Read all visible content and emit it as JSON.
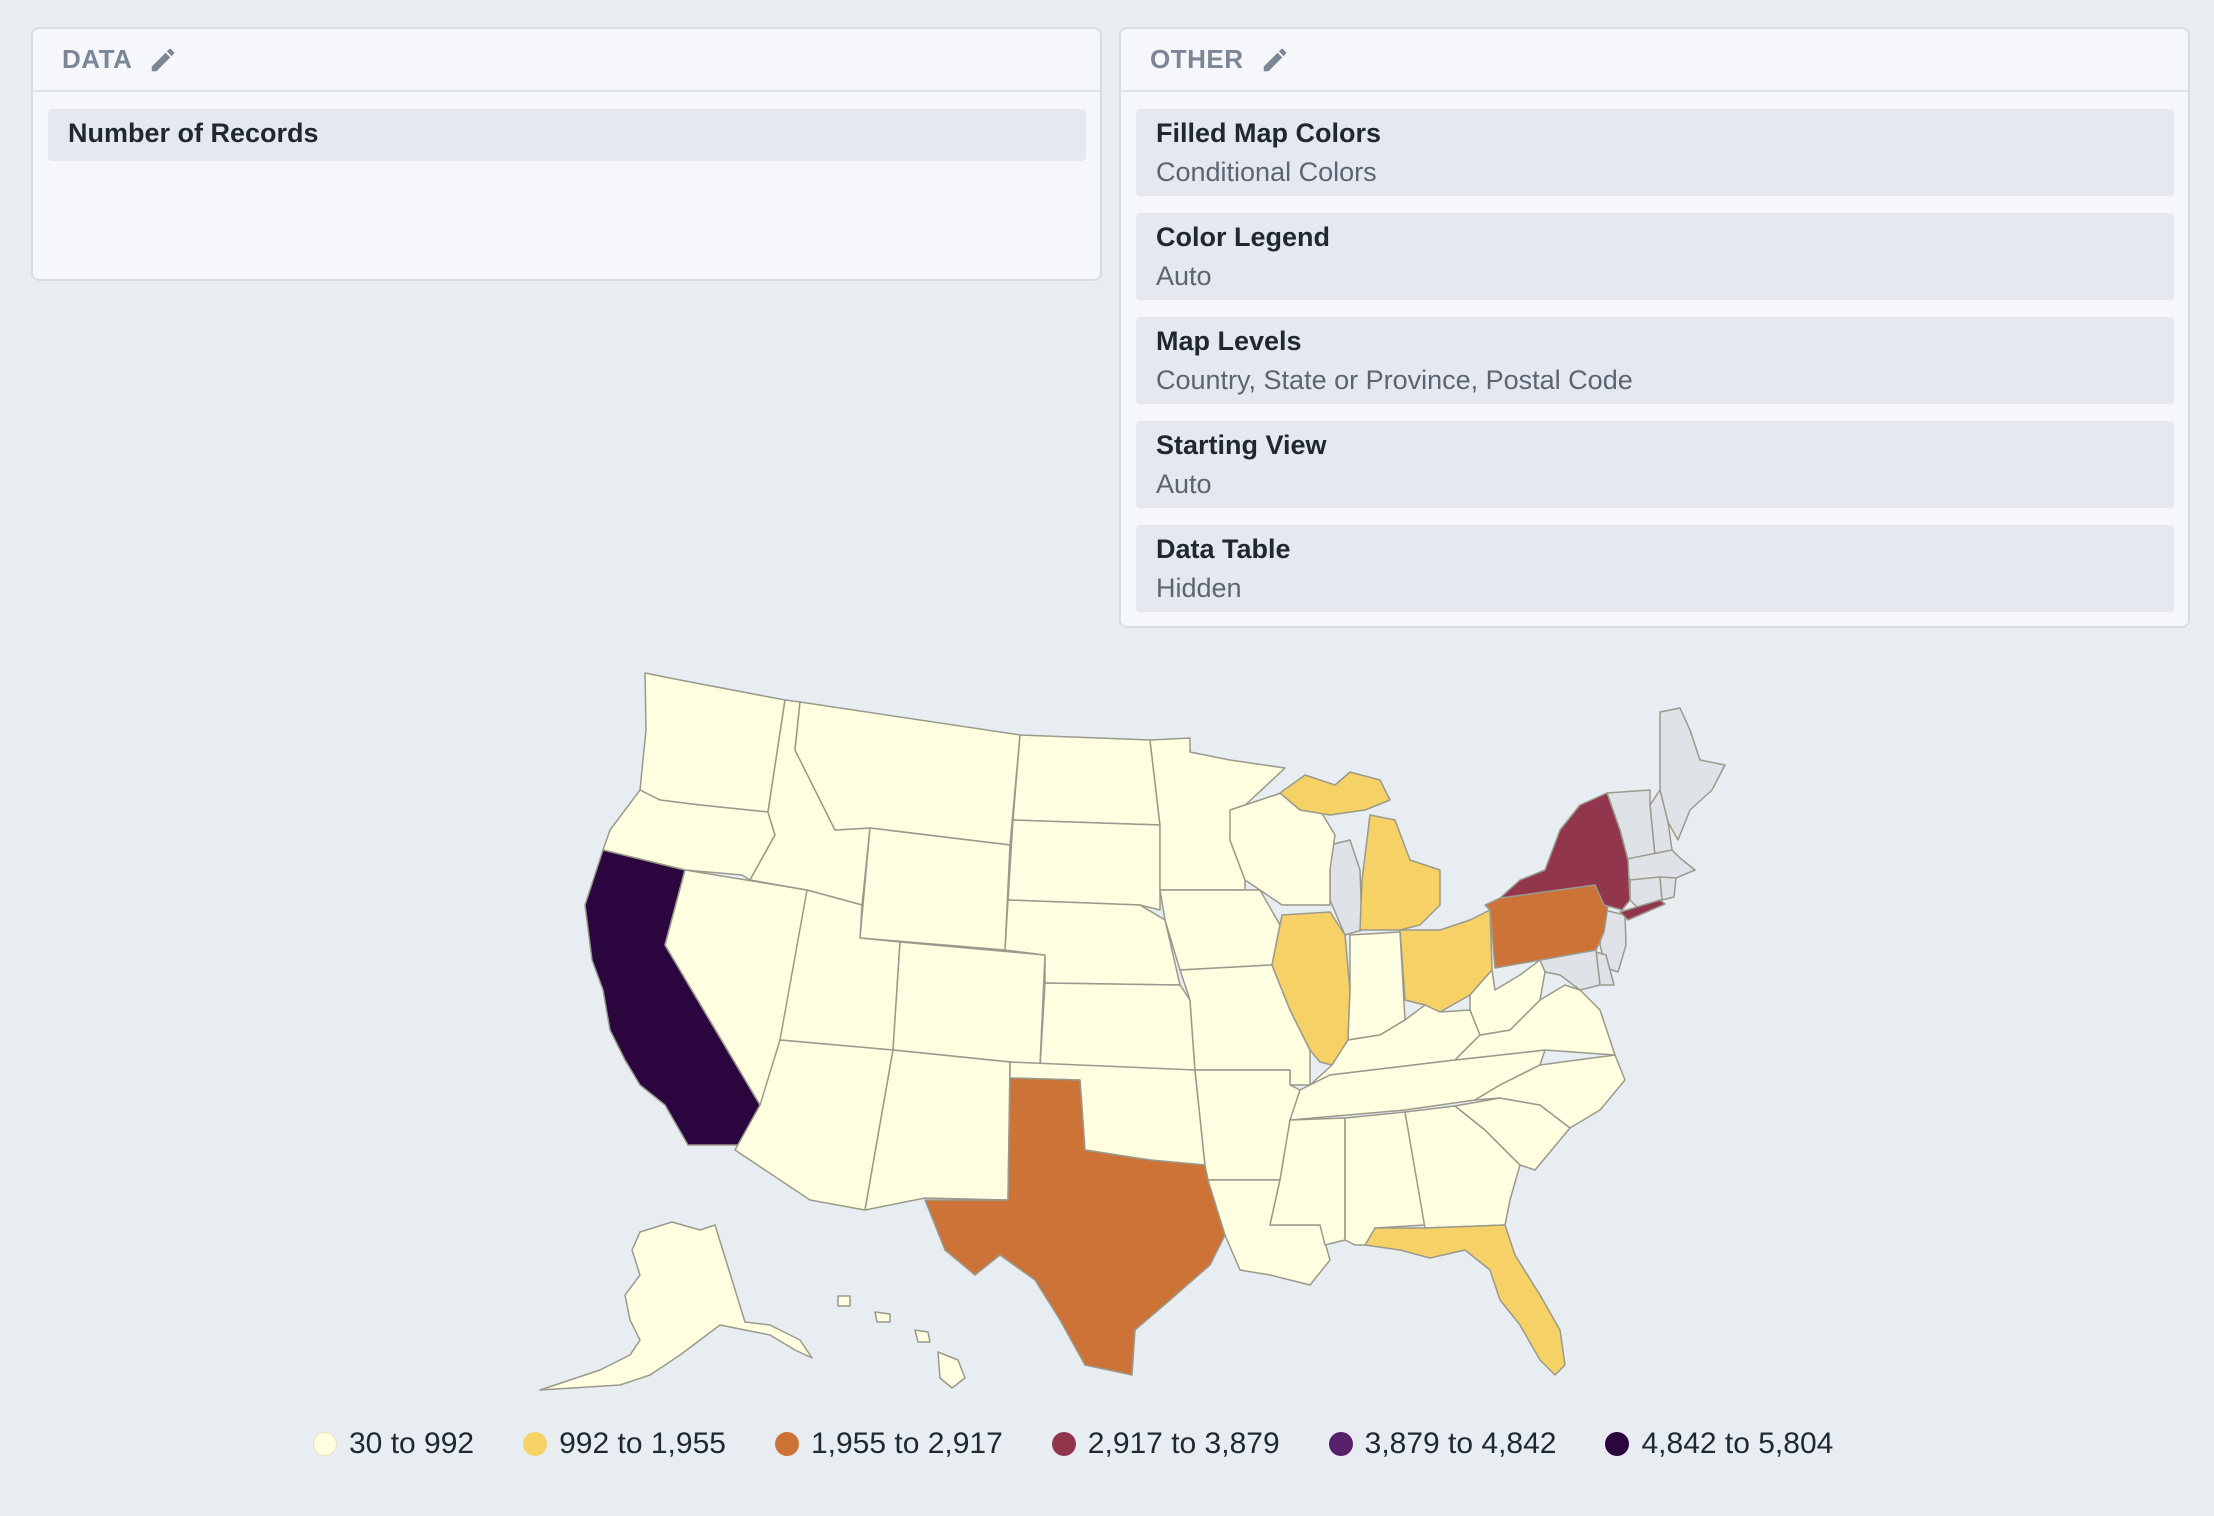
{
  "data_panel": {
    "title": "DATA",
    "edit_icon": "pencil-icon",
    "fields": [
      {
        "label": "Number of Records"
      }
    ]
  },
  "other_panel": {
    "title": "OTHER",
    "edit_icon": "pencil-icon",
    "settings": [
      {
        "label": "Filled Map Colors",
        "value": "Conditional Colors"
      },
      {
        "label": "Color Legend",
        "value": "Auto"
      },
      {
        "label": "Map Levels",
        "value": "Country, State or Province, Postal Code"
      },
      {
        "label": "Starting View",
        "value": "Auto"
      },
      {
        "label": "Data Table",
        "value": "Hidden"
      }
    ]
  },
  "map": {
    "no_data_color": "#dfe3e8",
    "legend": [
      {
        "label": "30 to 992",
        "color": "#fffee0"
      },
      {
        "label": "992 to 1,955",
        "color": "#f6d165"
      },
      {
        "label": "1,955 to 2,917",
        "color": "#cd7337"
      },
      {
        "label": "2,917 to 3,879",
        "color": "#92364e"
      },
      {
        "label": "3,879 to 4,842",
        "color": "#56206a"
      },
      {
        "label": "4,842 to 5,804",
        "color": "#2a053e"
      }
    ],
    "highlighted_states": [
      {
        "state": "California",
        "bucket": 5
      },
      {
        "state": "Texas",
        "bucket": 2
      },
      {
        "state": "Pennsylvania",
        "bucket": 2
      },
      {
        "state": "New York",
        "bucket": 3
      },
      {
        "state": "Florida",
        "bucket": 1
      },
      {
        "state": "Illinois",
        "bucket": 1
      },
      {
        "state": "Michigan",
        "bucket": 1
      },
      {
        "state": "Ohio",
        "bucket": 1
      }
    ]
  }
}
